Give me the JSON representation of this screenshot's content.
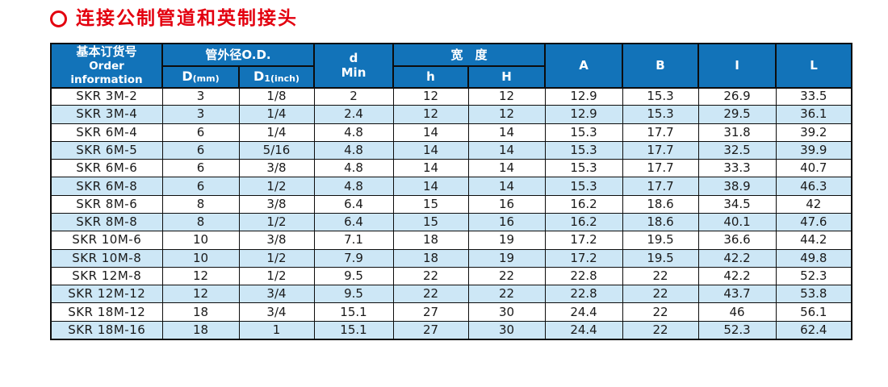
{
  "page": {
    "title": "连接公制管道和英制接头",
    "accent_red": "#e3000f",
    "header_blue": "#1273b9",
    "row_alt_blue": "#cde7f6"
  },
  "table": {
    "headers": {
      "order_info_zh": "基本订货号",
      "order_info_en": "Order information",
      "od_group": "管外径O.D.",
      "d_main": "D",
      "d_paren": "(mm)",
      "d1_main": "D",
      "d1_sub": "1",
      "d1_paren": "(inch)",
      "dmin_line1": "d",
      "dmin_line2": "Min",
      "width_group": "宽　度",
      "h_lower": "h",
      "h_upper": "H",
      "col_a": "A",
      "col_b": "B",
      "col_i": "I",
      "col_l": "L"
    },
    "rows": [
      [
        "SKR 3M-2",
        "3",
        "1/8",
        "2",
        "12",
        "12",
        "12.9",
        "15.3",
        "26.9",
        "33.5"
      ],
      [
        "SKR 3M-4",
        "3",
        "1/4",
        "2.4",
        "12",
        "12",
        "12.9",
        "15.3",
        "29.5",
        "36.1"
      ],
      [
        "SKR 6M-4",
        "6",
        "1/4",
        "4.8",
        "14",
        "14",
        "15.3",
        "17.7",
        "31.8",
        "39.2"
      ],
      [
        "SKR 6M-5",
        "6",
        "5/16",
        "4.8",
        "14",
        "14",
        "15.3",
        "17.7",
        "32.5",
        "39.9"
      ],
      [
        "SKR 6M-6",
        "6",
        "3/8",
        "4.8",
        "14",
        "14",
        "15.3",
        "17.7",
        "33.3",
        "40.7"
      ],
      [
        "SKR 6M-8",
        "6",
        "1/2",
        "4.8",
        "14",
        "14",
        "15.3",
        "17.7",
        "38.9",
        "46.3"
      ],
      [
        "SKR 8M-6",
        "8",
        "3/8",
        "6.4",
        "15",
        "16",
        "16.2",
        "18.6",
        "34.5",
        "42"
      ],
      [
        "SKR 8M-8",
        "8",
        "1/2",
        "6.4",
        "15",
        "16",
        "16.2",
        "18.6",
        "40.1",
        "47.6"
      ],
      [
        "SKR 10M-6",
        "10",
        "3/8",
        "7.1",
        "18",
        "19",
        "17.2",
        "19.5",
        "36.6",
        "44.2"
      ],
      [
        "SKR 10M-8",
        "10",
        "1/2",
        "7.9",
        "18",
        "19",
        "17.2",
        "19.5",
        "42.2",
        "49.8"
      ],
      [
        "SKR 12M-8",
        "12",
        "1/2",
        "9.5",
        "22",
        "22",
        "22.8",
        "22",
        "42.2",
        "52.3"
      ],
      [
        "SKR 12M-12",
        "12",
        "3/4",
        "9.5",
        "22",
        "22",
        "22.8",
        "22",
        "43.7",
        "53.8"
      ],
      [
        "SKR 18M-12",
        "18",
        "3/4",
        "15.1",
        "27",
        "30",
        "24.4",
        "22",
        "46",
        "56.1"
      ],
      [
        "SKR 18M-16",
        "18",
        "1",
        "15.1",
        "27",
        "30",
        "24.4",
        "22",
        "52.3",
        "62.4"
      ]
    ]
  }
}
